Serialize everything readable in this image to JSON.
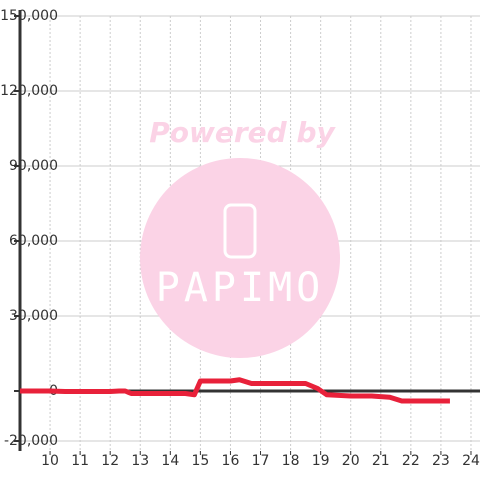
{
  "chart_data": {
    "type": "line",
    "x": [
      9,
      10,
      10.5,
      11,
      12,
      12.3,
      12.5,
      12.7,
      14.5,
      14.8,
      15,
      16,
      16.3,
      16.7,
      18.5,
      18.9,
      19.2,
      20,
      20.7,
      21.3,
      21.7,
      22,
      23.3
    ],
    "series": [
      {
        "color": "#e8213a",
        "values": [
          0,
          0,
          -200,
          -200,
          -200,
          0,
          0,
          -1000,
          -1000,
          -1500,
          4000,
          4000,
          4500,
          3000,
          3000,
          1000,
          -1500,
          -2000,
          -2000,
          -2500,
          -4000,
          -4000,
          -4000
        ]
      }
    ],
    "xlim": [
      9,
      24.3
    ],
    "xticks": [
      10,
      11,
      12,
      13,
      14,
      15,
      16,
      17,
      18,
      19,
      20,
      21,
      22,
      23,
      24
    ],
    "ylim": [
      -20000,
      150000
    ],
    "yticks": [
      {
        "value": -20000,
        "label": "-20,000"
      },
      0,
      {
        "value": 30000,
        "label": "30,000"
      },
      {
        "value": 60000,
        "label": "60,000"
      },
      {
        "value": 90000,
        "label": "90,000"
      },
      {
        "value": 120000,
        "label": "120,000"
      },
      {
        "value": 150000,
        "label": "150,000"
      }
    ],
    "grid": true
  },
  "watermark": {
    "powered_by": "Powered by",
    "logo": "PAPIMO"
  }
}
